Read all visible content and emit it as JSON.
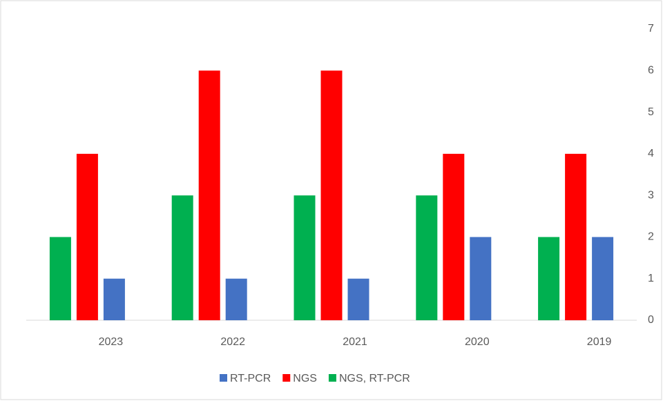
{
  "chart_data": {
    "type": "bar",
    "categories": [
      "2023",
      "2022",
      "2021",
      "2020",
      "2019"
    ],
    "series": [
      {
        "name": "NGS, RT-PCR",
        "color": "#00b050",
        "values": [
          2,
          3,
          3,
          3,
          2
        ]
      },
      {
        "name": "NGS",
        "color": "#ff0000",
        "values": [
          4,
          6,
          6,
          4,
          4
        ]
      },
      {
        "name": "RT-PCR",
        "color": "#4472c4",
        "values": [
          1,
          1,
          1,
          2,
          2
        ]
      }
    ],
    "legend_order": [
      "RT-PCR",
      "NGS",
      "NGS, RT-PCR"
    ],
    "ylim": [
      0,
      7
    ],
    "yticks": [
      0,
      1,
      2,
      3,
      4,
      5,
      6,
      7
    ],
    "y_axis_side": "right",
    "grid": false
  }
}
